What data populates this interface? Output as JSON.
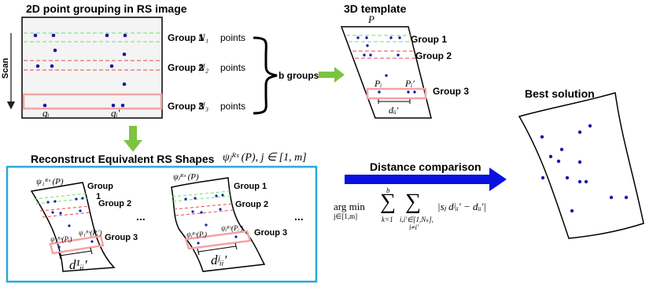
{
  "panel_rs": {
    "title": "2D point grouping in RS image",
    "scan_label": "Scan",
    "groups": [
      {
        "label": "Group 1",
        "count_symbol": "N₁",
        "count_word": "points"
      },
      {
        "label": "Group 2",
        "count_symbol": "N₂",
        "count_word": "points"
      },
      {
        "label": "Group 3",
        "count_symbol": "N₃",
        "count_word": "points"
      }
    ],
    "point_labels": [
      "qᵢ",
      "qᵢ′"
    ],
    "brace_label": "b groups"
  },
  "panel_template": {
    "title": "3D template",
    "plane_label": "P",
    "groups": [
      "Group 1",
      "Group 2",
      "Group 3"
    ],
    "point_labels": [
      "Pᵢ",
      "Pᵢ′"
    ],
    "distance_label": "dᵢᵢ′"
  },
  "panel_best": {
    "title": "Best solution"
  },
  "panel_reconstruct": {
    "title": "Reconstruct Equivalent RS Shapes",
    "formula": "ψⱼᴿˢ (P), j ∈ [1, m]",
    "shape1": {
      "psi_label": "ψ₁ᴿˢ (P)",
      "group_labels": [
        "Group",
        "1",
        "Group 2",
        "Group 3"
      ],
      "point_labels": [
        "ψ₁ᴿˢ(Pᵢ)",
        "ψ₁ᴿˢ(Pᵢ′)"
      ],
      "distance_label": "d¹ᵢᵢ′"
    },
    "shape2": {
      "psi_label": "ψⱼᴿˢ (P)",
      "group_labels": [
        "Group 1",
        "Group 2",
        "Group 3"
      ],
      "point_labels": [
        "ψⱼᴿˢ(Pᵢ)",
        "ψⱼᴿˢ(Pᵢ′)"
      ],
      "distance_label": "dʲᵢᵢ′"
    },
    "ellipsis": "..."
  },
  "comparison": {
    "label": "Distance comparison",
    "formula_argmin": "arg min",
    "formula_argmin_sub": "j∈[1,m]",
    "formula_sum1_top": "b",
    "formula_sum1_bottom": "k=1",
    "formula_sum2_bottom": "i,i′∈[1,Nₖ],",
    "formula_sum2_bottom2": "i≠i′",
    "formula_body": "|sⱼ dʲᵢᵢ′ − dᵢᵢ′|"
  },
  "colors": {
    "points": "#1a1aa8",
    "group1_lines": "#6ee06e",
    "group2_lines": "#e84848",
    "group3_box": "#f4a3a3",
    "arrow_green": "#7cc440",
    "arrow_blue": "#0a10e0",
    "reconstruct_border": "#2aa8e0"
  }
}
